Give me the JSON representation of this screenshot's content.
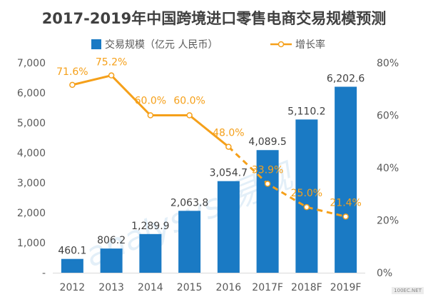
{
  "title": "2017-2019年中国跨境进口零售电商交易规模预测",
  "colors": {
    "bar": "#1a7ac4",
    "line": "#f5a01a",
    "axis_text": "#595959",
    "grid": "#d9d9d9",
    "label_bar": "#404040"
  },
  "chart_data": {
    "type": "bar",
    "categories": [
      "2012",
      "2013",
      "2014",
      "2015",
      "2016",
      "2017F",
      "2018F",
      "2019F"
    ],
    "series": [
      {
        "name": "交易规模（亿元 人民币）",
        "type": "bar",
        "axis": "left",
        "values": [
          460.1,
          806.2,
          1289.9,
          2063.8,
          3054.7,
          4089.5,
          5110.2,
          6202.6
        ],
        "labels": [
          "460.1",
          "806.2",
          "1,289.9",
          "2,063.8",
          "3,054.7",
          "4,089.5",
          "5,110.2",
          "6,202.6"
        ]
      },
      {
        "name": "增长率",
        "type": "line",
        "axis": "right",
        "values": [
          71.6,
          75.2,
          60.0,
          60.0,
          48.0,
          33.9,
          25.0,
          21.4
        ],
        "labels": [
          "71.6%",
          "75.2%",
          "60.0%",
          "60.0%",
          "48.0%",
          "33.9%",
          "25.0%",
          "21.4%"
        ],
        "dashed_from_index": 4
      }
    ],
    "y_left": {
      "ylim": [
        0,
        7000
      ],
      "ticks": [
        "-",
        "1,000",
        "2,000",
        "3,000",
        "4,000",
        "5,000",
        "6,000",
        "7,000"
      ]
    },
    "y_right": {
      "ylim": [
        0,
        80
      ],
      "ticks": [
        "0%",
        "20%",
        "40%",
        "60%",
        "80%"
      ]
    },
    "grid": false,
    "legend": "top"
  },
  "watermark": {
    "text": "analysys 易观",
    "site": "100EC.NET"
  }
}
